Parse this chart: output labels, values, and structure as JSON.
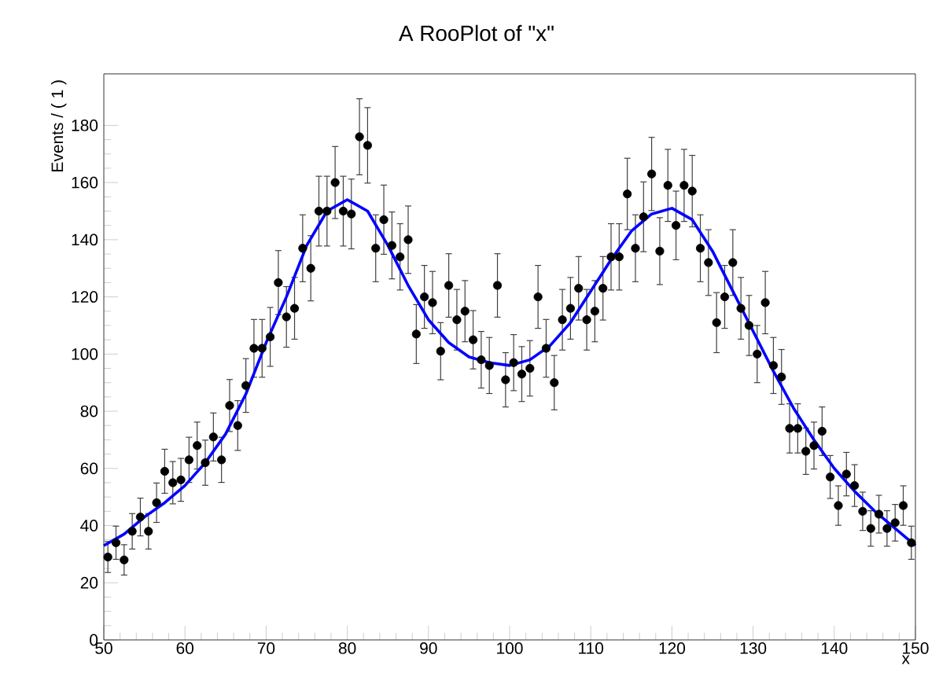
{
  "chart_data": {
    "type": "scatter",
    "title": "A RooPlot of \"x\"",
    "xlabel": "x",
    "ylabel": "Events / ( 1 )",
    "xlim": [
      50,
      150
    ],
    "ylim": [
      0,
      198
    ],
    "xticks": [
      50,
      60,
      70,
      80,
      90,
      100,
      110,
      120,
      130,
      140,
      150
    ],
    "yticks": [
      0,
      20,
      40,
      60,
      80,
      100,
      120,
      140,
      160,
      180
    ],
    "grid": false,
    "series": [
      {
        "color": "#000000",
        "marker": "circle",
        "x": [
          50.5,
          51.5,
          52.5,
          53.5,
          54.5,
          55.5,
          56.5,
          57.5,
          58.5,
          59.5,
          60.5,
          61.5,
          62.5,
          63.5,
          64.5,
          65.5,
          66.5,
          67.5,
          68.5,
          69.5,
          70.5,
          71.5,
          72.5,
          73.5,
          74.5,
          75.5,
          76.5,
          77.5,
          78.5,
          79.5,
          80.5,
          81.5,
          82.5,
          83.5,
          84.5,
          85.5,
          86.5,
          87.5,
          88.5,
          89.5,
          90.5,
          91.5,
          92.5,
          93.5,
          94.5,
          95.5,
          96.5,
          97.5,
          98.5,
          99.5,
          100.5,
          101.5,
          102.5,
          103.5,
          104.5,
          105.5,
          106.5,
          107.5,
          108.5,
          109.5,
          110.5,
          111.5,
          112.5,
          113.5,
          114.5,
          115.5,
          116.5,
          117.5,
          118.5,
          119.5,
          120.5,
          121.5,
          122.5,
          123.5,
          124.5,
          125.5,
          126.5,
          127.5,
          128.5,
          129.5,
          130.5,
          131.5,
          132.5,
          133.5,
          134.5,
          135.5,
          136.5,
          137.5,
          138.5,
          139.5,
          140.5,
          141.5,
          142.5,
          143.5,
          144.5,
          145.5,
          146.5,
          147.5,
          148.5,
          149.5
        ],
        "values": [
          29,
          34,
          28,
          38,
          43,
          38,
          48,
          59,
          55,
          56,
          63,
          68,
          62,
          71,
          63,
          82,
          75,
          89,
          102,
          102,
          106,
          125,
          113,
          116,
          137,
          130,
          150,
          150,
          160,
          150,
          149,
          176,
          173,
          137,
          147,
          138,
          134,
          140,
          107,
          120,
          118,
          101,
          124,
          112,
          115,
          105,
          98,
          96,
          124,
          91,
          97,
          93,
          95,
          120,
          102,
          90,
          112,
          116,
          123,
          112,
          115,
          123,
          134,
          134,
          156,
          137,
          148,
          163,
          136,
          159,
          145,
          159,
          157,
          137,
          132,
          111,
          120,
          132,
          116,
          110,
          100,
          118,
          96,
          92,
          74,
          74,
          66,
          68,
          73,
          57,
          47,
          58,
          54,
          45,
          39,
          44,
          39,
          41,
          47,
          34
        ],
        "errors": [
          5.4,
          5.8,
          5.3,
          6.2,
          6.6,
          6.2,
          6.9,
          7.7,
          7.4,
          7.5,
          7.9,
          8.2,
          7.9,
          8.4,
          7.9,
          9.1,
          8.7,
          9.4,
          10.1,
          10.1,
          10.3,
          11.2,
          10.6,
          10.8,
          11.7,
          11.4,
          12.2,
          12.2,
          12.6,
          12.2,
          12.2,
          13.3,
          13.2,
          11.7,
          12.1,
          11.7,
          11.6,
          11.8,
          10.3,
          11.0,
          10.9,
          10.0,
          11.1,
          10.6,
          10.7,
          10.2,
          9.9,
          9.8,
          11.1,
          9.5,
          9.8,
          9.6,
          9.7,
          11.0,
          10.1,
          9.5,
          10.6,
          10.8,
          11.1,
          10.6,
          10.7,
          11.1,
          11.6,
          11.6,
          12.5,
          11.7,
          12.2,
          12.8,
          11.7,
          12.6,
          12.0,
          12.6,
          12.5,
          11.7,
          11.5,
          10.5,
          11.0,
          11.5,
          10.8,
          10.5,
          10.0,
          10.9,
          9.8,
          9.6,
          8.6,
          8.6,
          8.1,
          8.2,
          8.5,
          7.5,
          6.9,
          7.6,
          7.3,
          6.7,
          6.2,
          6.6,
          6.2,
          6.4,
          6.9,
          5.8
        ]
      },
      {
        "type": "line",
        "color": "#0000ff",
        "marker": "none",
        "x": [
          50,
          52.5,
          55,
          57.5,
          60,
          62.5,
          65,
          67.5,
          70,
          72.5,
          75,
          77.5,
          80,
          82.5,
          85,
          87.5,
          90,
          92.5,
          95,
          97.5,
          100,
          102.5,
          105,
          107.5,
          110,
          112.5,
          115,
          117.5,
          120,
          122.5,
          125,
          127.5,
          130,
          132.5,
          135,
          137.5,
          140,
          142.5,
          145,
          147.5,
          150
        ],
        "values": [
          33,
          37,
          43,
          48,
          54,
          62,
          72,
          86,
          104,
          120,
          138,
          150,
          154,
          150,
          138,
          124,
          112,
          104,
          99,
          97,
          96,
          98,
          103,
          111,
          122,
          133,
          143,
          149,
          151,
          147,
          136,
          122,
          108,
          94,
          81,
          70,
          60,
          52,
          45,
          39,
          33
        ]
      }
    ]
  }
}
